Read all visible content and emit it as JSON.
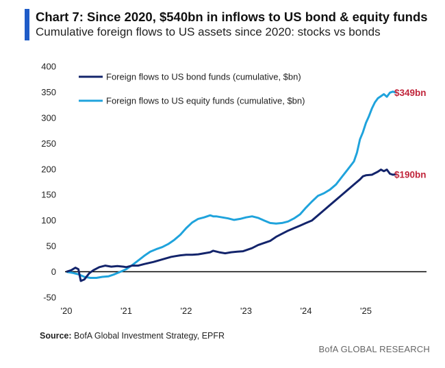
{
  "header": {
    "title": "Chart 7: Since 2020, $540bn in inflows to US bond & equity funds",
    "subtitle": "Cumulative foreign flows to US assets since 2020: stocks vs bonds"
  },
  "footer": {
    "source_label": "Source:",
    "source_text": "BofA Global Investment Strategy, EPFR",
    "brand": "BofA GLOBAL RESEARCH"
  },
  "colors": {
    "accent": "#1f5cc8",
    "bond": "#13246b",
    "equity": "#1fa3dc",
    "end_label": "#c0243a",
    "zero_line": "#000000"
  },
  "chart_data": {
    "type": "line",
    "title": "Chart 7: Since 2020, $540bn in inflows to US bond & equity funds",
    "subtitle": "Cumulative foreign flows to US assets since 2020: stocks vs bonds",
    "xlabel": "",
    "ylabel": "",
    "xlim": [
      2020,
      2026
    ],
    "ylim": [
      -50,
      400
    ],
    "yticks": [
      400,
      350,
      300,
      250,
      200,
      150,
      100,
      50,
      0,
      -50
    ],
    "xticks": [
      {
        "value": 2020,
        "label": "'20"
      },
      {
        "value": 2021,
        "label": "'21"
      },
      {
        "value": 2022,
        "label": "'22"
      },
      {
        "value": 2023,
        "label": "'23"
      },
      {
        "value": 2024,
        "label": "'24"
      },
      {
        "value": 2025,
        "label": "'25"
      }
    ],
    "grid": false,
    "legend_position": "top-left",
    "series": [
      {
        "name": "Foreign flows to US bond funds (cumulative, $bn)",
        "end_label": "$190bn",
        "points": [
          [
            2020.0,
            0
          ],
          [
            2020.08,
            3
          ],
          [
            2020.15,
            8
          ],
          [
            2020.2,
            5
          ],
          [
            2020.24,
            -18
          ],
          [
            2020.3,
            -15
          ],
          [
            2020.38,
            -3
          ],
          [
            2020.45,
            3
          ],
          [
            2020.55,
            9
          ],
          [
            2020.65,
            12
          ],
          [
            2020.75,
            10
          ],
          [
            2020.85,
            11
          ],
          [
            2020.95,
            10
          ],
          [
            2021.0,
            9
          ],
          [
            2021.1,
            12
          ],
          [
            2021.2,
            12
          ],
          [
            2021.3,
            15
          ],
          [
            2021.45,
            19
          ],
          [
            2021.6,
            24
          ],
          [
            2021.75,
            29
          ],
          [
            2021.9,
            32
          ],
          [
            2022.0,
            33
          ],
          [
            2022.1,
            33
          ],
          [
            2022.2,
            34
          ],
          [
            2022.3,
            36
          ],
          [
            2022.4,
            38
          ],
          [
            2022.45,
            41
          ],
          [
            2022.55,
            38
          ],
          [
            2022.65,
            36
          ],
          [
            2022.75,
            38
          ],
          [
            2022.85,
            39
          ],
          [
            2022.95,
            40
          ],
          [
            2023.0,
            42
          ],
          [
            2023.1,
            46
          ],
          [
            2023.2,
            52
          ],
          [
            2023.3,
            56
          ],
          [
            2023.4,
            60
          ],
          [
            2023.5,
            68
          ],
          [
            2023.6,
            74
          ],
          [
            2023.7,
            80
          ],
          [
            2023.8,
            85
          ],
          [
            2023.9,
            90
          ],
          [
            2024.0,
            95
          ],
          [
            2024.1,
            100
          ],
          [
            2024.2,
            110
          ],
          [
            2024.3,
            120
          ],
          [
            2024.4,
            130
          ],
          [
            2024.5,
            140
          ],
          [
            2024.6,
            150
          ],
          [
            2024.7,
            160
          ],
          [
            2024.8,
            170
          ],
          [
            2024.9,
            180
          ],
          [
            2024.95,
            186
          ],
          [
            2025.0,
            188
          ],
          [
            2025.1,
            189
          ],
          [
            2025.2,
            195
          ],
          [
            2025.25,
            199
          ],
          [
            2025.3,
            196
          ],
          [
            2025.35,
            199
          ],
          [
            2025.4,
            191
          ],
          [
            2025.45,
            189
          ],
          [
            2025.5,
            190
          ]
        ]
      },
      {
        "name": "Foreign flows to US equity funds (cumulative, $bn)",
        "end_label": "$349bn",
        "points": [
          [
            2020.0,
            0
          ],
          [
            2020.1,
            -2
          ],
          [
            2020.2,
            -5
          ],
          [
            2020.3,
            -10
          ],
          [
            2020.4,
            -12
          ],
          [
            2020.5,
            -12
          ],
          [
            2020.6,
            -10
          ],
          [
            2020.7,
            -9
          ],
          [
            2020.8,
            -5
          ],
          [
            2020.9,
            0
          ],
          [
            2021.0,
            5
          ],
          [
            2021.1,
            13
          ],
          [
            2021.2,
            22
          ],
          [
            2021.3,
            31
          ],
          [
            2021.4,
            39
          ],
          [
            2021.5,
            44
          ],
          [
            2021.6,
            48
          ],
          [
            2021.7,
            54
          ],
          [
            2021.8,
            62
          ],
          [
            2021.9,
            72
          ],
          [
            2022.0,
            85
          ],
          [
            2022.1,
            96
          ],
          [
            2022.2,
            103
          ],
          [
            2022.3,
            106
          ],
          [
            2022.4,
            110
          ],
          [
            2022.45,
            108
          ],
          [
            2022.5,
            108
          ],
          [
            2022.6,
            106
          ],
          [
            2022.7,
            104
          ],
          [
            2022.8,
            101
          ],
          [
            2022.9,
            103
          ],
          [
            2023.0,
            106
          ],
          [
            2023.1,
            108
          ],
          [
            2023.2,
            105
          ],
          [
            2023.3,
            100
          ],
          [
            2023.4,
            95
          ],
          [
            2023.5,
            94
          ],
          [
            2023.6,
            95
          ],
          [
            2023.7,
            98
          ],
          [
            2023.8,
            104
          ],
          [
            2023.9,
            112
          ],
          [
            2024.0,
            125
          ],
          [
            2024.1,
            137
          ],
          [
            2024.2,
            148
          ],
          [
            2024.3,
            153
          ],
          [
            2024.4,
            160
          ],
          [
            2024.5,
            170
          ],
          [
            2024.6,
            185
          ],
          [
            2024.7,
            200
          ],
          [
            2024.8,
            215
          ],
          [
            2024.85,
            232
          ],
          [
            2024.9,
            258
          ],
          [
            2024.95,
            272
          ],
          [
            2025.0,
            290
          ],
          [
            2025.05,
            303
          ],
          [
            2025.1,
            318
          ],
          [
            2025.15,
            330
          ],
          [
            2025.2,
            338
          ],
          [
            2025.25,
            342
          ],
          [
            2025.3,
            346
          ],
          [
            2025.35,
            341
          ],
          [
            2025.4,
            349
          ],
          [
            2025.45,
            351
          ],
          [
            2025.5,
            349
          ]
        ]
      }
    ]
  }
}
